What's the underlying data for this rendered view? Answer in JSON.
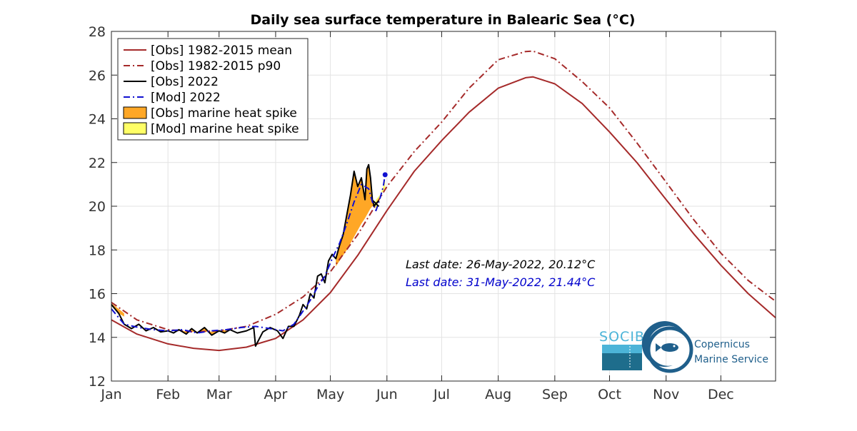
{
  "chart_data": {
    "type": "line",
    "title": "Daily sea surface temperature in Balearic Sea (°C)",
    "xlabel": "",
    "ylabel": "",
    "ylim": [
      12,
      28
    ],
    "yticks": [
      12,
      14,
      16,
      18,
      20,
      22,
      24,
      26,
      28
    ],
    "xlim_doy": [
      1,
      365
    ],
    "xticks": [
      {
        "label": "Jan",
        "doy": 1
      },
      {
        "label": "Feb",
        "doy": 32
      },
      {
        "label": "Mar",
        "doy": 60
      },
      {
        "label": "Apr",
        "doy": 91
      },
      {
        "label": "May",
        "doy": 121
      },
      {
        "label": "Jun",
        "doy": 152
      },
      {
        "label": "Jul",
        "doy": 182
      },
      {
        "label": "Aug",
        "doy": 213
      },
      {
        "label": "Sep",
        "doy": 244
      },
      {
        "label": "Oct",
        "doy": 274
      },
      {
        "label": "Nov",
        "doy": 305
      },
      {
        "label": "Dec",
        "doy": 335
      }
    ],
    "grid": true,
    "legend_position": "top-left",
    "series": [
      {
        "name": "[Obs] 1982-2015 mean",
        "color": "#a52a2a",
        "style": "solid",
        "x": [
          1,
          15,
          32,
          46,
          60,
          75,
          91,
          106,
          121,
          136,
          152,
          167,
          182,
          197,
          213,
          228,
          232,
          244,
          259,
          274,
          289,
          305,
          320,
          335,
          350,
          365
        ],
        "y": [
          14.8,
          14.15,
          13.7,
          13.5,
          13.4,
          13.55,
          13.95,
          14.8,
          16.05,
          17.75,
          19.8,
          21.6,
          23.0,
          24.3,
          25.4,
          25.88,
          25.92,
          25.6,
          24.7,
          23.4,
          22.0,
          20.3,
          18.75,
          17.3,
          16.0,
          14.9
        ]
      },
      {
        "name": "[Obs] 1982-2015 p90",
        "color": "#a52a2a",
        "style": "dashdot",
        "x": [
          1,
          15,
          32,
          46,
          60,
          75,
          91,
          106,
          121,
          136,
          152,
          167,
          182,
          197,
          213,
          228,
          232,
          244,
          259,
          274,
          289,
          305,
          320,
          335,
          350,
          365
        ],
        "y": [
          15.6,
          14.8,
          14.35,
          14.25,
          14.3,
          14.5,
          15.05,
          15.85,
          17.0,
          18.7,
          20.9,
          22.5,
          23.85,
          25.4,
          26.7,
          27.08,
          27.1,
          26.75,
          25.7,
          24.5,
          22.9,
          21.1,
          19.4,
          17.85,
          16.6,
          15.65
        ]
      },
      {
        "name": "[Obs] 2022",
        "color": "#000000",
        "style": "solid",
        "x": [
          1,
          5,
          8,
          12,
          16,
          20,
          24,
          28,
          32,
          35,
          38,
          42,
          45,
          48,
          52,
          56,
          60,
          63,
          66,
          70,
          75,
          79,
          80,
          84,
          88,
          92,
          95,
          98,
          101,
          104,
          106,
          108,
          110,
          112,
          114,
          116,
          118,
          120,
          122,
          124,
          126,
          128,
          130,
          132,
          134,
          136,
          138,
          140,
          141,
          142,
          143,
          144,
          145,
          146
        ],
        "y": [
          15.5,
          15.1,
          14.6,
          14.4,
          14.6,
          14.3,
          14.45,
          14.25,
          14.3,
          14.2,
          14.35,
          14.15,
          14.4,
          14.2,
          14.45,
          14.1,
          14.3,
          14.2,
          14.35,
          14.2,
          14.3,
          14.45,
          13.6,
          14.25,
          14.45,
          14.3,
          13.95,
          14.5,
          14.5,
          15.0,
          15.5,
          15.3,
          16.0,
          15.8,
          16.8,
          16.9,
          16.5,
          17.5,
          17.8,
          17.6,
          18.2,
          18.7,
          19.6,
          20.5,
          21.6,
          20.9,
          21.3,
          20.3,
          21.7,
          21.9,
          21.3,
          20.3,
          20.0,
          20.12
        ]
      },
      {
        "name": "[Mod] 2022",
        "color": "#1010d0",
        "style": "dashdot",
        "x": [
          1,
          8,
          16,
          24,
          32,
          40,
          48,
          56,
          64,
          72,
          80,
          88,
          95,
          101,
          106,
          110,
          114,
          118,
          122,
          126,
          130,
          134,
          138,
          142,
          144,
          146,
          148,
          150,
          151
        ],
        "y": [
          15.3,
          14.6,
          14.45,
          14.35,
          14.3,
          14.35,
          14.2,
          14.3,
          14.35,
          14.45,
          14.5,
          14.4,
          14.3,
          14.6,
          15.2,
          15.7,
          16.3,
          16.8,
          17.6,
          18.3,
          19.2,
          20.2,
          21.0,
          20.8,
          20.2,
          19.8,
          20.3,
          20.9,
          21.44
        ]
      }
    ],
    "areas": [
      {
        "name": "[Obs] marine heat spike",
        "color": "#ffa726",
        "segments": [
          {
            "x": [
              1,
              5,
              8
            ],
            "y": [
              15.55,
              15.1,
              14.95
            ],
            "baseline": [
              15.55,
              15.3,
              15.1
            ]
          },
          {
            "x": [
              38,
              42,
              45,
              48,
              52,
              56,
              60,
              63,
              66
            ],
            "y": [
              14.35,
              14.15,
              14.4,
              14.2,
              14.45,
              14.1,
              14.3,
              14.2,
              14.35
            ],
            "baseline": [
              14.3,
              14.28,
              14.26,
              14.25,
              14.25,
              14.26,
              14.3,
              14.33,
              14.36
            ]
          },
          {
            "x": [
              124,
              126,
              128,
              130,
              132,
              134,
              136,
              138,
              140,
              141,
              142,
              143,
              144,
              145
            ],
            "y": [
              17.6,
              18.2,
              18.7,
              19.6,
              20.5,
              21.6,
              20.9,
              21.3,
              20.3,
              21.7,
              21.9,
              21.3,
              20.3,
              20.0
            ],
            "baseline": [
              17.25,
              17.5,
              17.75,
              18.0,
              18.3,
              18.6,
              18.9,
              19.2,
              19.45,
              19.6,
              19.75,
              19.9,
              20.0,
              20.0
            ]
          }
        ]
      },
      {
        "name": "[Mod] marine heat spike",
        "color": "#ffff66",
        "segments": [
          {
            "x": [
              145,
              146,
              148,
              150,
              151
            ],
            "y": [
              20.05,
              19.9,
              20.4,
              20.9,
              21.2
            ],
            "baseline": [
              20.05,
              20.3,
              20.5,
              20.7,
              20.8
            ]
          }
        ]
      }
    ],
    "annotations": [
      {
        "text": "Last date: 26-May-2022, 20.12°C",
        "color": "#000000"
      },
      {
        "text": "Last date: 31-May-2022, 21.44°C",
        "color": "#0000cc"
      }
    ]
  },
  "logos": {
    "socib": {
      "text": "SOCIB"
    },
    "copernicus": {
      "line1": "Copernicus",
      "line2": "Marine Service"
    }
  }
}
